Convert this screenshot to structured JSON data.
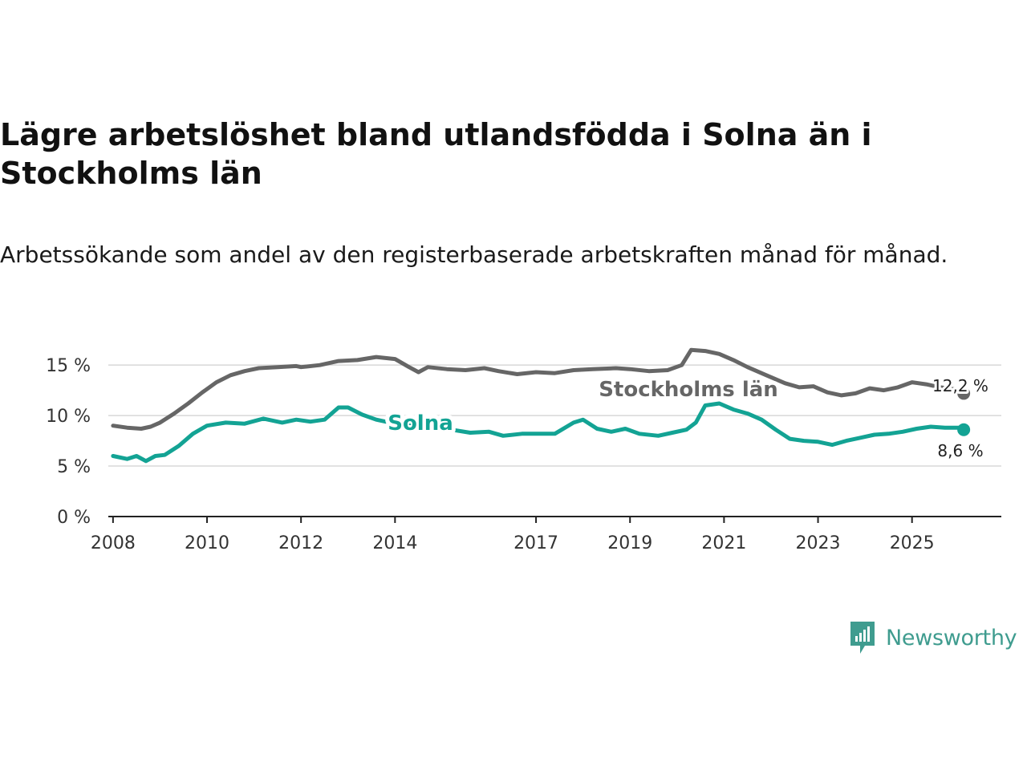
{
  "title": "Lägre arbetslöshet bland utlandsfödda i Solna än i Stockholms län",
  "subtitle": "Arbetssökande som andel av den registerbaserade arbetskraften månad för månad.",
  "brand": {
    "name": "Newsworthy",
    "color": "#3f9c8f",
    "icon": "newsworthy-logo-icon"
  },
  "colors": {
    "solna": "#13a394",
    "stockholm": "#666666",
    "grid": "#d8d8d8",
    "axis": "#222222"
  },
  "chart_data": {
    "type": "line",
    "title": "Lägre arbetslöshet bland utlandsfödda i Solna än i Stockholms län",
    "xlabel": "",
    "ylabel": "",
    "xlim": [
      2007.9,
      2026.9
    ],
    "ylim": [
      0,
      17
    ],
    "y_ticks": [
      0,
      5,
      10,
      15
    ],
    "y_tick_labels": [
      "0 %",
      "5 %",
      "10 %",
      "15 %"
    ],
    "x_ticks": [
      2008,
      2010,
      2012,
      2014,
      2017,
      2019,
      2021,
      2023,
      2025
    ],
    "x_tick_labels": [
      "2008",
      "2010",
      "2012",
      "2014",
      "2017",
      "2019",
      "2021",
      "2023",
      "2025"
    ],
    "series": [
      {
        "name": "Stockholms län",
        "label": "Stockholms län",
        "end_label": "12,2 %",
        "points": [
          [
            2008.0,
            9.0
          ],
          [
            2008.3,
            8.8
          ],
          [
            2008.6,
            8.7
          ],
          [
            2008.8,
            8.9
          ],
          [
            2009.0,
            9.3
          ],
          [
            2009.3,
            10.2
          ],
          [
            2009.6,
            11.2
          ],
          [
            2009.9,
            12.3
          ],
          [
            2010.2,
            13.3
          ],
          [
            2010.5,
            14.0
          ],
          [
            2010.8,
            14.4
          ],
          [
            2011.1,
            14.7
          ],
          [
            2011.5,
            14.8
          ],
          [
            2011.9,
            14.9
          ],
          [
            2012.0,
            14.8
          ],
          [
            2012.4,
            15.0
          ],
          [
            2012.8,
            15.4
          ],
          [
            2013.2,
            15.5
          ],
          [
            2013.6,
            15.8
          ],
          [
            2014.0,
            15.6
          ],
          [
            2014.3,
            14.8
          ],
          [
            2014.5,
            14.3
          ],
          [
            2014.7,
            14.8
          ],
          [
            2015.1,
            14.6
          ],
          [
            2015.5,
            14.5
          ],
          [
            2015.9,
            14.7
          ],
          [
            2016.2,
            14.4
          ],
          [
            2016.6,
            14.1
          ],
          [
            2017.0,
            14.3
          ],
          [
            2017.4,
            14.2
          ],
          [
            2017.8,
            14.5
          ],
          [
            2018.2,
            14.6
          ],
          [
            2018.7,
            14.7
          ],
          [
            2019.0,
            14.6
          ],
          [
            2019.4,
            14.4
          ],
          [
            2019.8,
            14.5
          ],
          [
            2020.1,
            15.0
          ],
          [
            2020.3,
            16.5
          ],
          [
            2020.6,
            16.4
          ],
          [
            2020.9,
            16.1
          ],
          [
            2021.2,
            15.5
          ],
          [
            2021.5,
            14.8
          ],
          [
            2021.9,
            14.0
          ],
          [
            2022.3,
            13.2
          ],
          [
            2022.6,
            12.8
          ],
          [
            2022.9,
            12.9
          ],
          [
            2023.2,
            12.3
          ],
          [
            2023.5,
            12.0
          ],
          [
            2023.8,
            12.2
          ],
          [
            2024.1,
            12.7
          ],
          [
            2024.4,
            12.5
          ],
          [
            2024.7,
            12.8
          ],
          [
            2025.0,
            13.3
          ],
          [
            2025.3,
            13.1
          ],
          [
            2025.6,
            12.8
          ],
          [
            2025.9,
            12.6
          ],
          [
            2026.1,
            12.2
          ]
        ]
      },
      {
        "name": "Solna",
        "label": "Solna",
        "end_label": "8,6 %",
        "points": [
          [
            2008.0,
            6.0
          ],
          [
            2008.3,
            5.7
          ],
          [
            2008.5,
            6.0
          ],
          [
            2008.7,
            5.5
          ],
          [
            2008.9,
            6.0
          ],
          [
            2009.1,
            6.1
          ],
          [
            2009.4,
            7.0
          ],
          [
            2009.7,
            8.2
          ],
          [
            2010.0,
            9.0
          ],
          [
            2010.4,
            9.3
          ],
          [
            2010.8,
            9.2
          ],
          [
            2011.2,
            9.7
          ],
          [
            2011.6,
            9.3
          ],
          [
            2011.9,
            9.6
          ],
          [
            2012.2,
            9.4
          ],
          [
            2012.5,
            9.6
          ],
          [
            2012.8,
            10.8
          ],
          [
            2013.0,
            10.8
          ],
          [
            2013.3,
            10.1
          ],
          [
            2013.6,
            9.6
          ],
          [
            2014.0,
            9.2
          ],
          [
            2014.4,
            9.0
          ],
          [
            2014.8,
            8.6
          ],
          [
            2015.2,
            8.6
          ],
          [
            2015.6,
            8.3
          ],
          [
            2016.0,
            8.4
          ],
          [
            2016.3,
            8.0
          ],
          [
            2016.7,
            8.2
          ],
          [
            2017.0,
            8.2
          ],
          [
            2017.4,
            8.2
          ],
          [
            2017.8,
            9.3
          ],
          [
            2018.0,
            9.6
          ],
          [
            2018.3,
            8.7
          ],
          [
            2018.6,
            8.4
          ],
          [
            2018.9,
            8.7
          ],
          [
            2019.2,
            8.2
          ],
          [
            2019.6,
            8.0
          ],
          [
            2019.9,
            8.3
          ],
          [
            2020.2,
            8.6
          ],
          [
            2020.4,
            9.3
          ],
          [
            2020.6,
            11.0
          ],
          [
            2020.9,
            11.2
          ],
          [
            2021.2,
            10.6
          ],
          [
            2021.5,
            10.2
          ],
          [
            2021.8,
            9.6
          ],
          [
            2022.1,
            8.6
          ],
          [
            2022.4,
            7.7
          ],
          [
            2022.7,
            7.5
          ],
          [
            2023.0,
            7.4
          ],
          [
            2023.3,
            7.1
          ],
          [
            2023.6,
            7.5
          ],
          [
            2023.9,
            7.8
          ],
          [
            2024.2,
            8.1
          ],
          [
            2024.5,
            8.2
          ],
          [
            2024.8,
            8.4
          ],
          [
            2025.1,
            8.7
          ],
          [
            2025.4,
            8.9
          ],
          [
            2025.7,
            8.8
          ],
          [
            2026.0,
            8.8
          ],
          [
            2026.1,
            8.6
          ]
        ]
      }
    ]
  }
}
